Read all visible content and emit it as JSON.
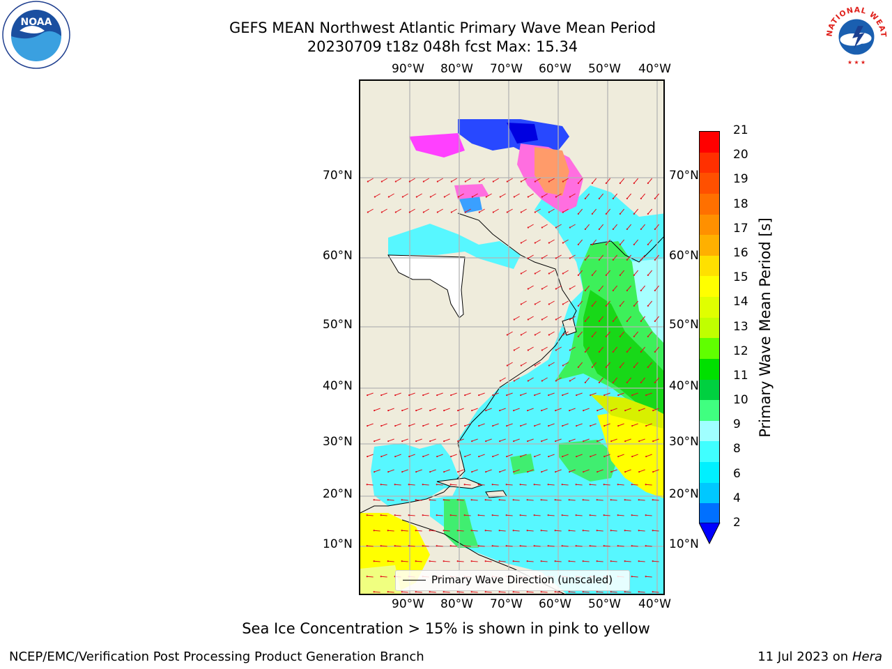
{
  "title": {
    "line1": "GEFS MEAN Northwest Atlantic Primary Wave Mean Period",
    "line2": "20230709 t18z 048h fcst   Max: 15.34"
  },
  "map": {
    "longitude_ticks": [
      "90°W",
      "80°W",
      "70°W",
      "60°W",
      "50°W",
      "40°W"
    ],
    "latitude_ticks": [
      "70°N",
      "60°N",
      "50°N",
      "40°N",
      "30°N",
      "20°N",
      "10°N"
    ],
    "land_color": "#efecdc"
  },
  "legend": {
    "label": "Primary Wave Direction (unscaled)"
  },
  "colorbar": {
    "title": "Primary Wave Mean Period [s]",
    "labels": [
      "21",
      "20",
      "19",
      "18",
      "17",
      "16",
      "15",
      "14",
      "13",
      "12",
      "11",
      "10",
      "9",
      "8",
      "6",
      "4",
      "2"
    ],
    "colors": [
      "#ff0000",
      "#ff3000",
      "#ff5000",
      "#ff7000",
      "#ff9000",
      "#ffb000",
      "#ffe000",
      "#ffff00",
      "#e0ff00",
      "#c0ff00",
      "#60ff00",
      "#00e000",
      "#00d040",
      "#40ff80",
      "#a0ffff",
      "#40ffff",
      "#00f0ff",
      "#00c8ff",
      "#0070ff"
    ],
    "extend_color": "#0000ff"
  },
  "caption": "Sea Ice Concentration > 15% is shown in pink to yellow",
  "footer": {
    "left": "NCEP/EMC/Verification Post Processing Product Generation Branch",
    "right_prefix": "11 Jul 2023 on ",
    "right_host": "Hera"
  },
  "logos": {
    "noaa_text": "NOAA",
    "nws_text": "NATIONAL WEATHER SERVICE"
  }
}
